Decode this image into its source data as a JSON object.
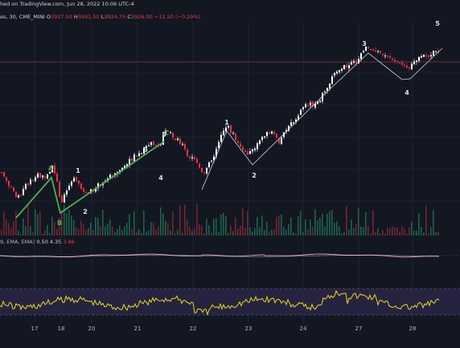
{
  "header": {
    "published": "hed on TradingView.com, Jun 28, 2022 10:06 UTC-4",
    "symbol": "es, 30, CME_MINI",
    "open_label": "O",
    "open": "3937.50",
    "high_label": "H",
    "high": "3941.50",
    "low_label": "L",
    "low": "3924.75",
    "close_label": "C",
    "close": "3926.00",
    "change": "−11.50 (−0.29%)"
  },
  "indicator": {
    "params": "9, EMA, EMA)",
    "v1": "0.50",
    "v2": "4.35",
    "v3": "3.86"
  },
  "colors": {
    "background": "#131722",
    "bull": "#ffffff",
    "bear": "#ef3340",
    "wave_green": "#4caf50",
    "oscillator": "#e8d81a",
    "macd_line": "#e8a8c8",
    "signal_line": "#ffffff",
    "price_line": "#7a3a45"
  },
  "chart_data": {
    "type": "candlestick",
    "x_ticks": [
      "17",
      "18",
      "20",
      "21",
      "22",
      "23",
      "24",
      "27",
      "28"
    ],
    "wave_labels": [
      {
        "text": "A",
        "color": "green"
      },
      {
        "text": "B",
        "color": "green"
      },
      {
        "text": "C",
        "color": "green"
      },
      {
        "text": "1",
        "color": "white"
      },
      {
        "text": "2",
        "color": "white"
      },
      {
        "text": "3",
        "color": "white"
      },
      {
        "text": "4",
        "color": "white"
      },
      {
        "text": "5",
        "color": "white"
      },
      {
        "text": "1",
        "color": "white"
      },
      {
        "text": "2",
        "color": "white"
      },
      {
        "text": "3",
        "color": "white"
      },
      {
        "text": "4",
        "color": "white"
      },
      {
        "text": "5",
        "color": "white"
      }
    ],
    "price_path": [
      [
        0,
        3790
      ],
      [
        10,
        3770
      ],
      [
        20,
        3745
      ],
      [
        32,
        3770
      ],
      [
        45,
        3785
      ],
      [
        55,
        3780
      ],
      [
        64,
        3800
      ],
      [
        70,
        3778
      ],
      [
        75,
        3738
      ],
      [
        82,
        3760
      ],
      [
        90,
        3778
      ],
      [
        97,
        3773
      ],
      [
        105,
        3752
      ],
      [
        118,
        3765
      ],
      [
        135,
        3783
      ],
      [
        150,
        3795
      ],
      [
        163,
        3812
      ],
      [
        175,
        3823
      ],
      [
        188,
        3838
      ],
      [
        198,
        3832
      ],
      [
        204,
        3860
      ],
      [
        212,
        3850
      ],
      [
        222,
        3842
      ],
      [
        232,
        3818
      ],
      [
        242,
        3807
      ],
      [
        252,
        3788
      ],
      [
        262,
        3808
      ],
      [
        272,
        3840
      ],
      [
        281,
        3868
      ],
      [
        290,
        3848
      ],
      [
        300,
        3830
      ],
      [
        308,
        3820
      ],
      [
        318,
        3832
      ],
      [
        328,
        3848
      ],
      [
        338,
        3860
      ],
      [
        346,
        3840
      ],
      [
        356,
        3858
      ],
      [
        368,
        3880
      ],
      [
        380,
        3898
      ],
      [
        395,
        3901
      ],
      [
        408,
        3935
      ],
      [
        420,
        3955
      ],
      [
        432,
        3962
      ],
      [
        442,
        3968
      ],
      [
        450,
        3986
      ],
      [
        456,
        3995
      ],
      [
        466,
        3982
      ],
      [
        477,
        3982
      ],
      [
        486,
        3970
      ],
      [
        496,
        3965
      ],
      [
        507,
        3955
      ],
      [
        512,
        3970
      ],
      [
        522,
        3978
      ],
      [
        532,
        3980
      ],
      [
        540,
        3985
      ],
      [
        546,
        3982
      ]
    ]
  }
}
